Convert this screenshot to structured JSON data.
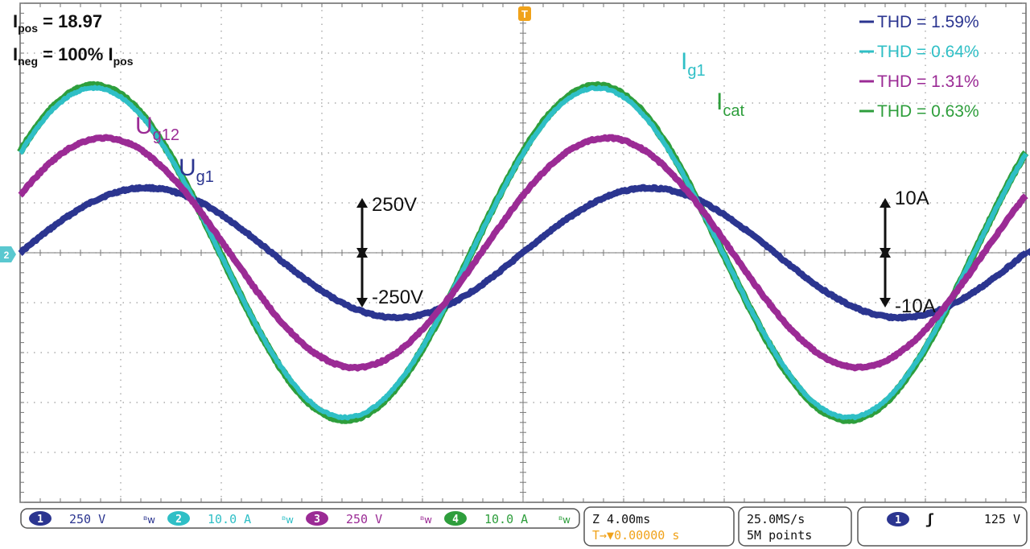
{
  "overlay": {
    "ipos_prefix": "I",
    "ipos_sub": "pos",
    "ipos_value": " = 18.97",
    "ineg_prefix": "I",
    "ineg_sub": "neg",
    "ineg_mid": " = 100% I",
    "ineg_sub2": "pos"
  },
  "legend": [
    {
      "text": "THD = 1.59%",
      "color": "#2b3590"
    },
    {
      "text": "THD = 0.64%",
      "color": "#2fbfc6"
    },
    {
      "text": "THD = 1.31%",
      "color": "#9b2b95"
    },
    {
      "text": "THD = 0.63%",
      "color": "#2e9e3c"
    }
  ],
  "labels": {
    "ug12": {
      "main": "U",
      "sub": "g12"
    },
    "ug1": {
      "main": "U",
      "sub": "g1"
    },
    "ig1": {
      "main": "I",
      "sub": "g1"
    },
    "icat": {
      "main": "I",
      "sub": "cat"
    }
  },
  "scales": {
    "v_top": "250V",
    "v_bottom": "-250V",
    "a_top": "10A",
    "a_bottom": "-10A"
  },
  "markers": {
    "trigger_marker": "T",
    "channel2_marker": "2"
  },
  "chart_data": {
    "type": "line",
    "x_unit": "ms",
    "time_per_division_ms": 4,
    "divisions_x": 10,
    "divisions_y": 10,
    "trigger_time_ms": 0,
    "x_range_ms": [
      -20,
      20
    ],
    "grid": true,
    "series": [
      {
        "name": "U_g1",
        "channel": 1,
        "unit": "V",
        "volts_per_div": 250,
        "amplitude_div": 1.3,
        "phase_deg": 0,
        "offset_div": 0,
        "thd": "1.59%",
        "color": "#2b3590"
      },
      {
        "name": "I_g1",
        "channel": 2,
        "unit": "A",
        "amps_per_div": 10,
        "amplitude_div": 3.3,
        "phase_deg": 37,
        "offset_div": 0,
        "thd": "0.64%",
        "color": "#2fbfc6"
      },
      {
        "name": "U_g12",
        "channel": 3,
        "unit": "V",
        "volts_per_div": 250,
        "amplitude_div": 2.3,
        "phase_deg": 30,
        "offset_div": 0,
        "thd": "1.31%",
        "color": "#9b2b95"
      },
      {
        "name": "I_cat",
        "channel": 4,
        "unit": "A",
        "amps_per_div": 10,
        "amplitude_div": 3.35,
        "phase_deg": 37,
        "offset_div": 0,
        "thd": "0.63%",
        "color": "#2e9e3c"
      }
    ]
  },
  "status_bar": {
    "channels": [
      {
        "num": "1",
        "scale": "250 V",
        "color": "#2b3590"
      },
      {
        "num": "2",
        "scale": "10.0 A",
        "color": "#2fbfc6"
      },
      {
        "num": "3",
        "scale": "250 V",
        "color": "#9b2b95"
      },
      {
        "num": "4",
        "scale": "10.0 A",
        "color": "#2e9e3c"
      }
    ],
    "bw_symbol": "ᴮw",
    "timebase": "Z 4.00ms",
    "trigger_pos": "T→▼0.00000 s",
    "sample_rate": "25.0MS/s",
    "record_length": "5M points",
    "trigger_channel": "1",
    "trigger_slope": "ʃ",
    "trigger_level": "125 V"
  }
}
